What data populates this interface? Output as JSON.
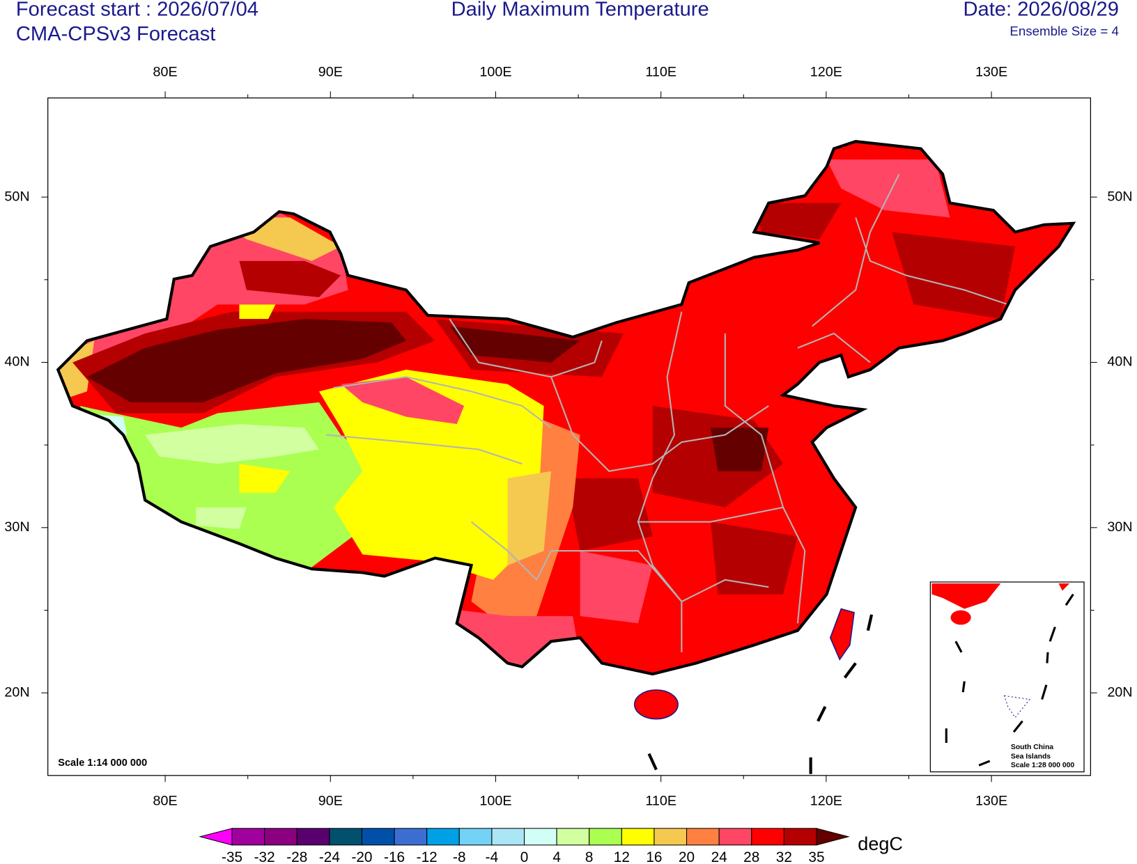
{
  "map": {
    "header": {
      "forecast_start": "Forecast start : 2026/07/04",
      "model": "CMA-CPSv3 Forecast",
      "title": "Daily Maximum Temperature",
      "date": "Date: 2026/08/29",
      "ensemble": "Ensemble Size = 4"
    },
    "xlim": [
      72.9,
      136
    ],
    "ylim": [
      15,
      56
    ],
    "xticks": [
      {
        "value": 80,
        "label": "80E"
      },
      {
        "value": 90,
        "label": "90E"
      },
      {
        "value": 100,
        "label": "100E"
      },
      {
        "value": 110,
        "label": "110E"
      },
      {
        "value": 120,
        "label": "120E"
      },
      {
        "value": 130,
        "label": "130E"
      }
    ],
    "yticks": [
      {
        "value": 20,
        "label": "20N"
      },
      {
        "value": 30,
        "label": "30N"
      },
      {
        "value": 40,
        "label": "40N"
      },
      {
        "value": 50,
        "label": "50N"
      }
    ],
    "scale": "Scale 1:14 000 000",
    "inset": {
      "line1": "South China",
      "line2": "Sea Islands",
      "line3": "Scale 1:28 000 000"
    },
    "colorbar": {
      "unit": "degC",
      "levels": [
        -35,
        -32,
        -28,
        -24,
        -20,
        -16,
        -12,
        -8,
        -4,
        0,
        4,
        8,
        12,
        16,
        20,
        24,
        28,
        32,
        35
      ],
      "colors": [
        "#ff00ff",
        "#a0009e",
        "#8b0080",
        "#5a006e",
        "#00506e",
        "#0050aa",
        "#3c6ed2",
        "#00a0e6",
        "#73d2f5",
        "#aae6f5",
        "#d2fff5",
        "#d2ffa0",
        "#aaff50",
        "#ffff00",
        "#f5c850",
        "#ff8040",
        "#ff4664",
        "#ff0000",
        "#b40000",
        "#640000"
      ]
    }
  }
}
